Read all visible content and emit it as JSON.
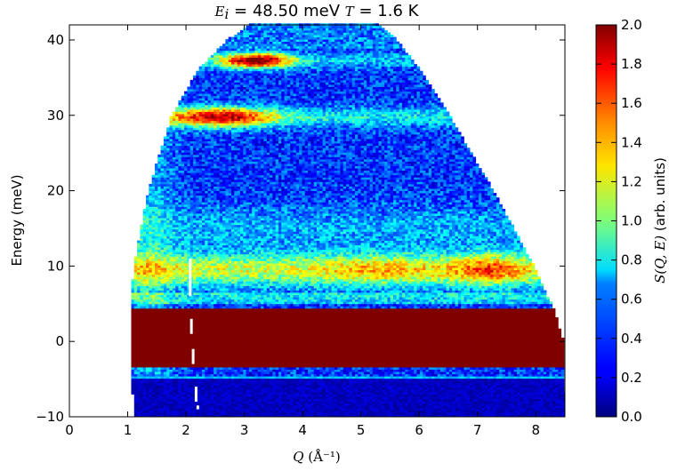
{
  "chart_data": {
    "type": "heatmap",
    "title": "E_i = 48.50 meV T = 1.6 K",
    "title_parts": {
      "ei_symbol": "E",
      "ei_sub": "i",
      "ei_value": " = 48.50 meV ",
      "t_symbol": "T",
      "t_value": " = 1.6 K"
    },
    "xlabel": "Q (Å⁻¹)",
    "xlabel_parts": {
      "symbol": "Q",
      "unit": " (Å⁻¹)"
    },
    "ylabel": "Energy (meV)",
    "colorbar_label": "S(Q, E) (arb. units)",
    "colorbar_label_parts": {
      "math": "S(Q, E)",
      "unit": " (arb. units)"
    },
    "xlim": [
      0,
      8.5
    ],
    "ylim": [
      -10,
      42
    ],
    "clim": [
      0,
      2.0
    ],
    "colormap": "jet",
    "x_ticks": [
      "0",
      "1",
      "2",
      "3",
      "4",
      "5",
      "6",
      "7",
      "8"
    ],
    "y_ticks": [
      "−10",
      "0",
      "10",
      "20",
      "30",
      "40"
    ],
    "colorbar_ticks": [
      "0.0",
      "0.2",
      "0.4",
      "0.6",
      "0.8",
      "1.0",
      "1.2",
      "1.4",
      "1.6",
      "1.8",
      "2.0"
    ],
    "kinematic_limit": {
      "q_min_points": [
        [
          -10,
          1.12
        ],
        [
          -4,
          1.05
        ],
        [
          4,
          1.05
        ],
        [
          10,
          1.1
        ],
        [
          20,
          1.35
        ],
        [
          30,
          1.75
        ],
        [
          36,
          2.2
        ],
        [
          40,
          2.7
        ],
        [
          42,
          3.1
        ]
      ],
      "q_max_points": [
        [
          -10,
          8.5
        ],
        [
          0,
          8.45
        ],
        [
          4,
          8.3
        ],
        [
          10,
          7.95
        ],
        [
          20,
          7.25
        ],
        [
          30,
          6.5
        ],
        [
          36,
          6.0
        ],
        [
          40,
          5.6
        ],
        [
          42,
          5.3
        ]
      ]
    },
    "features": [
      {
        "name": "elastic line",
        "energy_range": [
          -3.5,
          4.5
        ],
        "intensity": 2.0
      },
      {
        "name": "negative energy background",
        "energy_range": [
          -10,
          -4.5
        ],
        "intensity": 0.1
      },
      {
        "name": "low energy band",
        "energy_range": [
          6,
          12
        ],
        "intensity": 1.5,
        "peak_q": 7.2
      },
      {
        "name": "band 30 meV",
        "energy_range": [
          28.5,
          31.5
        ],
        "intensity": 1.5,
        "q_range": [
          1.8,
          3.5
        ]
      },
      {
        "name": "band 37 meV",
        "energy_range": [
          36,
          38.5
        ],
        "intensity": 1.8,
        "q_range": [
          2.6,
          3.8
        ]
      }
    ],
    "grid": false,
    "legend": "none"
  }
}
